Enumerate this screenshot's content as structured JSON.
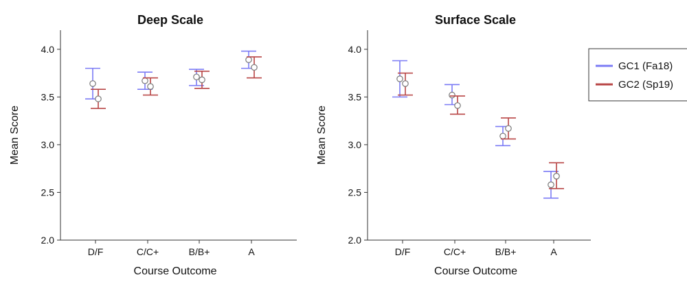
{
  "legend": {
    "placement": "right",
    "items": [
      {
        "label": "GC1 (Fa18)",
        "color": "#7b7bf5"
      },
      {
        "label": "GC2 (Sp19)",
        "color": "#b84545"
      }
    ]
  },
  "chart_data": [
    {
      "type": "scatter",
      "title": "Deep Scale",
      "xlabel": "Course Outcome",
      "ylabel": "Mean Score",
      "categories": [
        "D/F",
        "C/C+",
        "B/B+",
        "A"
      ],
      "ylim": [
        2.0,
        4.2
      ],
      "yticks": [
        "2.0",
        "2.5",
        "3.0",
        "3.5",
        "4.0"
      ],
      "grid": false,
      "series": [
        {
          "name": "GC1 (Fa18)",
          "color": "#7b7bf5",
          "values": [
            3.64,
            3.67,
            3.71,
            3.89
          ],
          "lower": [
            3.48,
            3.58,
            3.62,
            3.8
          ],
          "upper": [
            3.8,
            3.76,
            3.79,
            3.98
          ]
        },
        {
          "name": "GC2 (Sp19)",
          "color": "#b84545",
          "values": [
            3.48,
            3.61,
            3.68,
            3.81
          ],
          "lower": [
            3.38,
            3.52,
            3.59,
            3.7
          ],
          "upper": [
            3.58,
            3.7,
            3.77,
            3.92
          ]
        }
      ]
    },
    {
      "type": "scatter",
      "title": "Surface Scale",
      "xlabel": "Course Outcome",
      "ylabel": "Mean Score",
      "categories": [
        "D/F",
        "C/C+",
        "B/B+",
        "A"
      ],
      "ylim": [
        2.0,
        4.2
      ],
      "yticks": [
        "2.0",
        "2.5",
        "3.0",
        "3.5",
        "4.0"
      ],
      "grid": false,
      "series": [
        {
          "name": "GC1 (Fa18)",
          "color": "#7b7bf5",
          "values": [
            3.69,
            3.52,
            3.09,
            2.58
          ],
          "lower": [
            3.5,
            3.42,
            2.99,
            2.44
          ],
          "upper": [
            3.88,
            3.63,
            3.19,
            2.72
          ]
        },
        {
          "name": "GC2 (Sp19)",
          "color": "#b84545",
          "values": [
            3.64,
            3.41,
            3.17,
            2.67
          ],
          "lower": [
            3.52,
            3.32,
            3.06,
            2.54
          ],
          "upper": [
            3.75,
            3.51,
            3.28,
            2.81
          ]
        }
      ]
    }
  ]
}
